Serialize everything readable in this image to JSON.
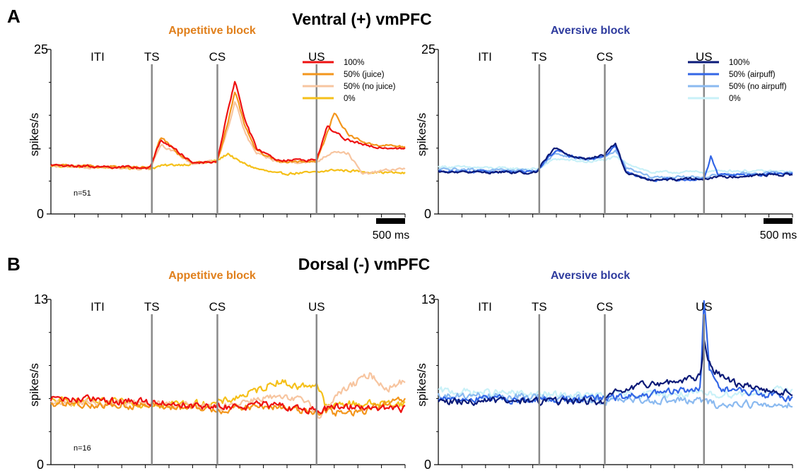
{
  "figure": {
    "rows": [
      {
        "letter": "A",
        "title": "Ventral (+) vmPFC"
      },
      {
        "letter": "B",
        "title": "Dorsal (-) vmPFC"
      }
    ]
  },
  "colors": {
    "appetitive_title": "#e07f1b",
    "aversive_title": "#2e3b9e",
    "event_line": "#8a8a8a"
  },
  "chart_data": [
    {
      "id": "A-appetitive",
      "type": "line",
      "title": "Appetitive block",
      "ylabel": "spikes/s",
      "ylim": [
        0,
        25
      ],
      "yticks": [
        "0",
        "25"
      ],
      "events": [
        {
          "label": "ITI",
          "x": null
        },
        {
          "label": "TS",
          "x": 0.285
        },
        {
          "label": "CS",
          "x": 0.47
        },
        {
          "label": "US",
          "x": 0.75
        }
      ],
      "n_label": "n=51",
      "scale_bar": "500 ms",
      "series": [
        {
          "name": "100%",
          "color": "#ee1111",
          "points": [
            [
              0,
              7.4
            ],
            [
              0.28,
              7.0
            ],
            [
              0.31,
              11.3
            ],
            [
              0.36,
              9.4
            ],
            [
              0.4,
              7.8
            ],
            [
              0.47,
              8.0
            ],
            [
              0.5,
              16
            ],
            [
              0.52,
              20.2
            ],
            [
              0.55,
              14
            ],
            [
              0.58,
              10
            ],
            [
              0.64,
              8.2
            ],
            [
              0.75,
              8.2
            ],
            [
              0.78,
              13.3
            ],
            [
              0.83,
              11.4
            ],
            [
              0.9,
              10.2
            ],
            [
              1.0,
              10.0
            ]
          ]
        },
        {
          "name": "50% (juice)",
          "color": "#f3961c",
          "points": [
            [
              0,
              7.4
            ],
            [
              0.28,
              7.0
            ],
            [
              0.31,
              11.8
            ],
            [
              0.36,
              9.2
            ],
            [
              0.4,
              7.7
            ],
            [
              0.47,
              8.0
            ],
            [
              0.5,
              14
            ],
            [
              0.52,
              18.5
            ],
            [
              0.55,
              13
            ],
            [
              0.58,
              9.6
            ],
            [
              0.64,
              8.0
            ],
            [
              0.75,
              8.0
            ],
            [
              0.78,
              12.2
            ],
            [
              0.8,
              15.4
            ],
            [
              0.84,
              12
            ],
            [
              0.9,
              10.6
            ],
            [
              1.0,
              10.2
            ]
          ]
        },
        {
          "name": "50% (no juice)",
          "color": "#f7c5a0",
          "points": [
            [
              0,
              7.3
            ],
            [
              0.28,
              6.9
            ],
            [
              0.31,
              10.6
            ],
            [
              0.36,
              9.0
            ],
            [
              0.4,
              7.6
            ],
            [
              0.47,
              8.0
            ],
            [
              0.5,
              13
            ],
            [
              0.52,
              17.2
            ],
            [
              0.55,
              12
            ],
            [
              0.58,
              9.2
            ],
            [
              0.64,
              7.9
            ],
            [
              0.75,
              7.9
            ],
            [
              0.8,
              9.6
            ],
            [
              0.84,
              9.2
            ],
            [
              0.88,
              6.0
            ],
            [
              0.94,
              6.6
            ],
            [
              1.0,
              6.9
            ]
          ]
        },
        {
          "name": "0%",
          "color": "#f5c01a",
          "points": [
            [
              0,
              7.3
            ],
            [
              0.28,
              6.9
            ],
            [
              0.31,
              7.3
            ],
            [
              0.36,
              7.5
            ],
            [
              0.4,
              7.6
            ],
            [
              0.47,
              8.1
            ],
            [
              0.5,
              9.2
            ],
            [
              0.53,
              8.0
            ],
            [
              0.58,
              6.9
            ],
            [
              0.64,
              6.1
            ],
            [
              0.75,
              6.3
            ],
            [
              0.8,
              6.7
            ],
            [
              0.9,
              6.4
            ],
            [
              1.0,
              6.2
            ]
          ]
        }
      ]
    },
    {
      "id": "A-aversive",
      "type": "line",
      "title": "Aversive block",
      "ylabel": "spikes/s",
      "ylim": [
        0,
        25
      ],
      "yticks": [
        "0",
        "25"
      ],
      "events": [
        {
          "label": "ITI",
          "x": null
        },
        {
          "label": "TS",
          "x": 0.285
        },
        {
          "label": "CS",
          "x": 0.47
        },
        {
          "label": "US",
          "x": 0.75
        }
      ],
      "scale_bar": "500 ms",
      "series": [
        {
          "name": "100%",
          "color": "#0a1a78",
          "points": [
            [
              0,
              6.4
            ],
            [
              0.28,
              6.3
            ],
            [
              0.3,
              8.2
            ],
            [
              0.33,
              10.0
            ],
            [
              0.37,
              9.0
            ],
            [
              0.42,
              8.4
            ],
            [
              0.47,
              8.9
            ],
            [
              0.5,
              10.8
            ],
            [
              0.53,
              6.2
            ],
            [
              0.6,
              5.1
            ],
            [
              0.75,
              5.4
            ],
            [
              0.77,
              5.5
            ],
            [
              0.8,
              5.6
            ],
            [
              0.9,
              5.9
            ],
            [
              1.0,
              6.0
            ]
          ]
        },
        {
          "name": "50% (airpuff)",
          "color": "#3366e6",
          "points": [
            [
              0,
              6.5
            ],
            [
              0.28,
              6.4
            ],
            [
              0.3,
              8.0
            ],
            [
              0.33,
              9.6
            ],
            [
              0.37,
              8.9
            ],
            [
              0.42,
              8.3
            ],
            [
              0.47,
              8.8
            ],
            [
              0.5,
              10.5
            ],
            [
              0.53,
              6.4
            ],
            [
              0.6,
              5.2
            ],
            [
              0.75,
              5.3
            ],
            [
              0.77,
              8.8
            ],
            [
              0.79,
              6.0
            ],
            [
              0.9,
              5.9
            ],
            [
              1.0,
              6.2
            ]
          ]
        },
        {
          "name": "50% (no airpuff)",
          "color": "#8bbaf0",
          "points": [
            [
              0,
              6.8
            ],
            [
              0.28,
              6.6
            ],
            [
              0.3,
              7.8
            ],
            [
              0.33,
              9.2
            ],
            [
              0.37,
              8.7
            ],
            [
              0.42,
              8.2
            ],
            [
              0.47,
              8.7
            ],
            [
              0.5,
              9.6
            ],
            [
              0.53,
              7.0
            ],
            [
              0.6,
              5.6
            ],
            [
              0.75,
              5.6
            ],
            [
              0.8,
              6.0
            ],
            [
              0.9,
              6.2
            ],
            [
              1.0,
              6.3
            ]
          ]
        },
        {
          "name": "0%",
          "color": "#c9f1f8",
          "points": [
            [
              0,
              7.2
            ],
            [
              0.28,
              6.8
            ],
            [
              0.33,
              8.4
            ],
            [
              0.42,
              7.9
            ],
            [
              0.47,
              8.2
            ],
            [
              0.5,
              8.6
            ],
            [
              0.53,
              7.8
            ],
            [
              0.6,
              6.3
            ],
            [
              0.75,
              6.4
            ],
            [
              0.8,
              6.6
            ],
            [
              0.9,
              6.5
            ],
            [
              1.0,
              6.4
            ]
          ]
        }
      ]
    },
    {
      "id": "B-appetitive",
      "type": "line",
      "title": "Appetitive block",
      "ylabel": "spikes/s",
      "ylim": [
        0,
        13
      ],
      "yticks": [
        "0",
        "13"
      ],
      "events": [
        {
          "label": "ITI",
          "x": null
        },
        {
          "label": "TS",
          "x": 0.285
        },
        {
          "label": "CS",
          "x": 0.47
        },
        {
          "label": "US",
          "x": 0.75
        }
      ],
      "n_label": "n=16",
      "series": [
        {
          "name": "100%",
          "color": "#ee1111",
          "points": [
            [
              0,
              5.2
            ],
            [
              0.3,
              4.9
            ],
            [
              0.47,
              4.5
            ],
            [
              0.6,
              4.7
            ],
            [
              0.75,
              4.3
            ],
            [
              0.85,
              4.6
            ],
            [
              1.0,
              4.4
            ]
          ]
        },
        {
          "name": "50% (juice)",
          "color": "#f3961c",
          "points": [
            [
              0,
              4.8
            ],
            [
              0.3,
              4.6
            ],
            [
              0.47,
              4.3
            ],
            [
              0.6,
              4.6
            ],
            [
              0.75,
              4.2
            ],
            [
              0.85,
              4.0
            ],
            [
              0.93,
              4.6
            ],
            [
              1.0,
              5.1
            ]
          ]
        },
        {
          "name": "50% (no juice)",
          "color": "#f7c5a0",
          "points": [
            [
              0,
              4.9
            ],
            [
              0.3,
              4.8
            ],
            [
              0.47,
              4.5
            ],
            [
              0.6,
              5.3
            ],
            [
              0.73,
              5.0
            ],
            [
              0.76,
              3.6
            ],
            [
              0.8,
              5.4
            ],
            [
              0.86,
              6.4
            ],
            [
              0.9,
              7.1
            ],
            [
              0.95,
              6.0
            ],
            [
              1.0,
              6.6
            ]
          ]
        },
        {
          "name": "0%",
          "color": "#f5c01a",
          "points": [
            [
              0,
              5.0
            ],
            [
              0.3,
              4.8
            ],
            [
              0.47,
              4.8
            ],
            [
              0.58,
              5.8
            ],
            [
              0.64,
              6.6
            ],
            [
              0.7,
              6.1
            ],
            [
              0.75,
              6.4
            ],
            [
              0.78,
              4.4
            ],
            [
              0.82,
              4.8
            ]
          ]
        }
      ]
    },
    {
      "id": "B-aversive",
      "type": "line",
      "title": "Aversive block",
      "ylabel": "spikes/s",
      "ylim": [
        0,
        13
      ],
      "yticks": [
        "0",
        "13"
      ],
      "events": [
        {
          "label": "ITI",
          "x": null
        },
        {
          "label": "TS",
          "x": 0.285
        },
        {
          "label": "CS",
          "x": 0.47
        },
        {
          "label": "US",
          "x": 0.75
        }
      ],
      "series": [
        {
          "name": "100%",
          "color": "#0a1a78",
          "points": [
            [
              0,
              5.0
            ],
            [
              0.3,
              5.0
            ],
            [
              0.47,
              5.0
            ],
            [
              0.5,
              5.6
            ],
            [
              0.6,
              6.4
            ],
            [
              0.7,
              6.6
            ],
            [
              0.74,
              7.0
            ],
            [
              0.75,
              9.8
            ],
            [
              0.77,
              7.5
            ],
            [
              0.85,
              6.3
            ],
            [
              1.0,
              5.6
            ]
          ]
        },
        {
          "name": "50% (airpuff)",
          "color": "#3366e6",
          "points": [
            [
              0,
              5.2
            ],
            [
              0.3,
              5.1
            ],
            [
              0.47,
              5.2
            ],
            [
              0.6,
              5.5
            ],
            [
              0.74,
              6.0
            ],
            [
              0.75,
              13.0
            ],
            [
              0.765,
              7.5
            ],
            [
              0.8,
              6.0
            ],
            [
              0.9,
              5.6
            ],
            [
              1.0,
              5.2
            ]
          ]
        },
        {
          "name": "50% (no airpuff)",
          "color": "#8bbaf0",
          "points": [
            [
              0,
              5.4
            ],
            [
              0.3,
              5.3
            ],
            [
              0.47,
              5.0
            ],
            [
              0.6,
              5.1
            ],
            [
              0.75,
              5.0
            ],
            [
              0.8,
              4.6
            ],
            [
              0.86,
              4.9
            ],
            [
              0.92,
              4.6
            ],
            [
              1.0,
              4.8
            ]
          ]
        },
        {
          "name": "0%",
          "color": "#c9f1f8",
          "points": [
            [
              0,
              5.8
            ],
            [
              0.3,
              5.5
            ],
            [
              0.47,
              5.4
            ],
            [
              0.6,
              5.6
            ],
            [
              0.75,
              5.5
            ],
            [
              0.85,
              5.6
            ],
            [
              0.95,
              5.8
            ],
            [
              1.0,
              5.9
            ]
          ]
        }
      ]
    }
  ]
}
